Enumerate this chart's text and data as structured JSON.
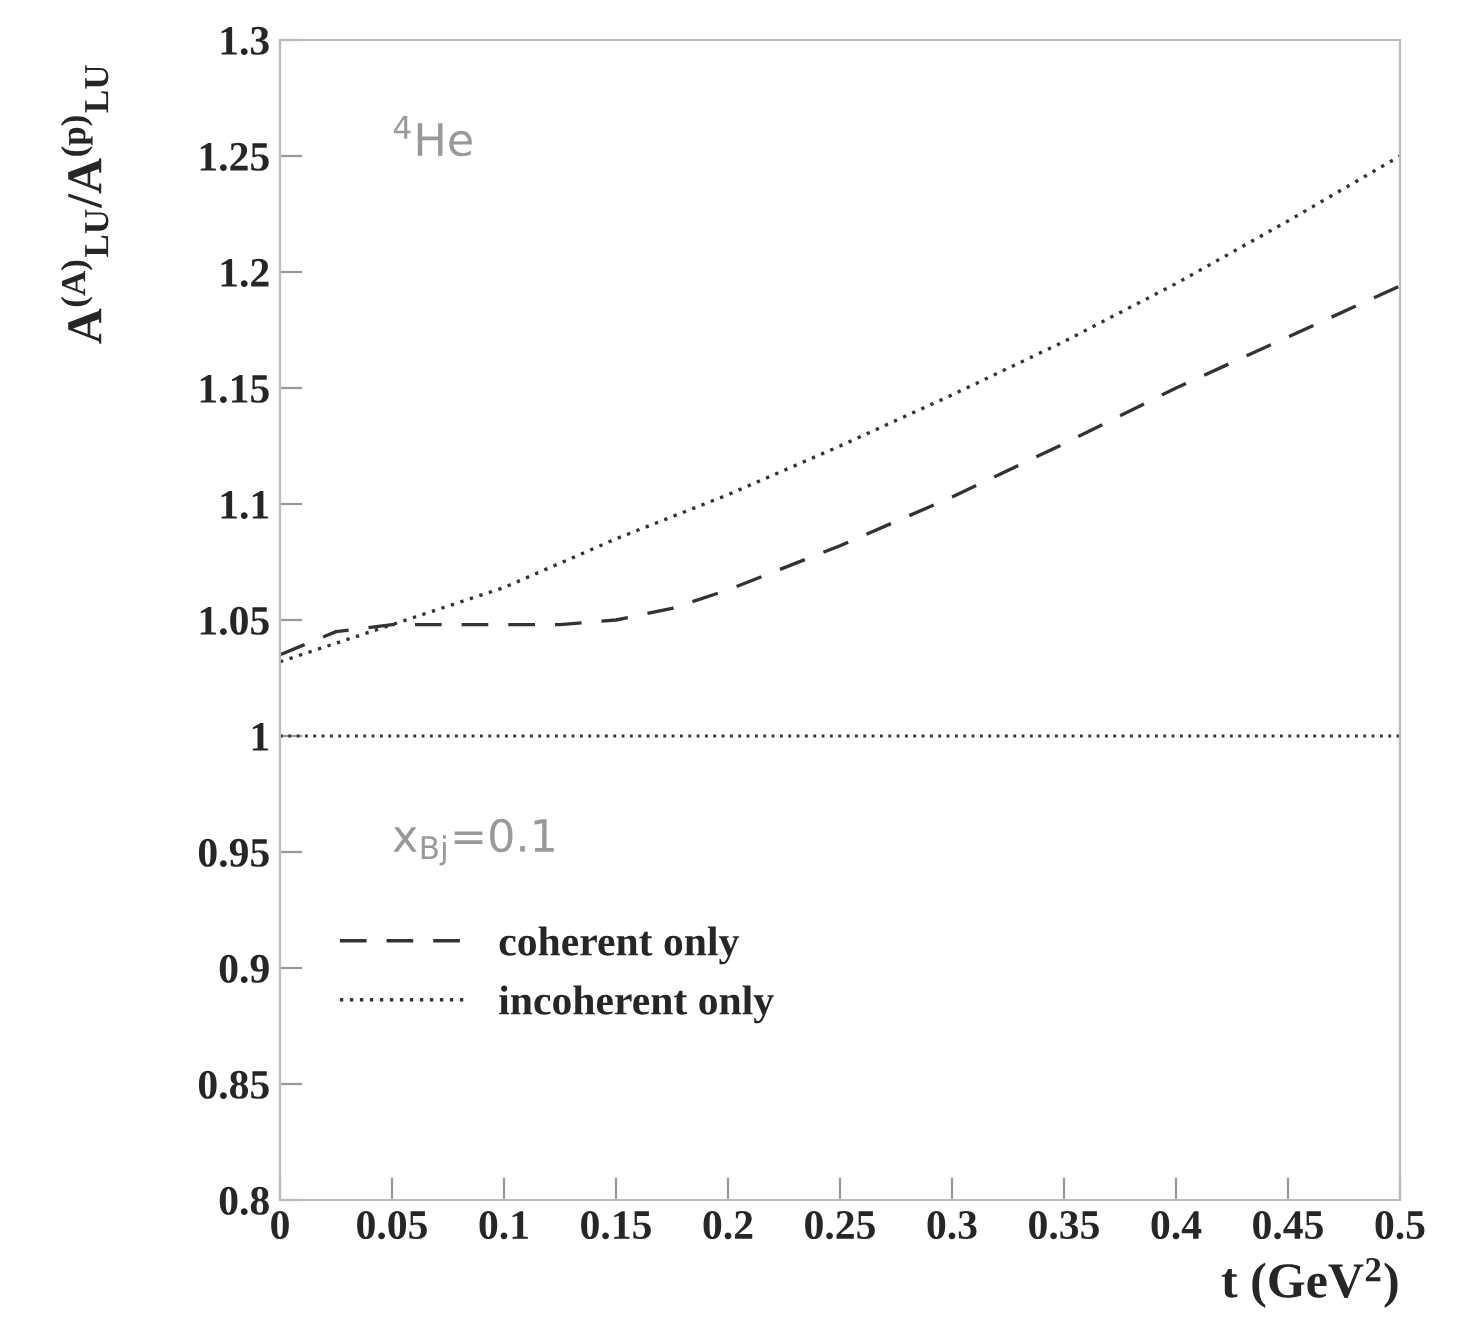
{
  "chart_data": {
    "type": "line",
    "xlabel": "t (GeV$^{2}$)",
    "ylabel": "A$^{(A)}$$_{LU}$/A$^{(p)}$$_{LU}$",
    "series": [
      {
        "name": "coherent only",
        "color": "#333333",
        "line_style": "dashed",
        "x": [
          0,
          0.025,
          0.05,
          0.075,
          0.1,
          0.125,
          0.15,
          0.175,
          0.2,
          0.25,
          0.3,
          0.35,
          0.4,
          0.45,
          0.5
        ],
        "values": [
          1.035,
          1.045,
          1.048,
          1.048,
          1.048,
          1.048,
          1.05,
          1.055,
          1.063,
          1.082,
          1.103,
          1.126,
          1.15,
          1.172,
          1.194
        ]
      },
      {
        "name": "incoherent only",
        "color": "#333333",
        "line_style": "dotted",
        "x": [
          0,
          0.025,
          0.05,
          0.1,
          0.15,
          0.2,
          0.25,
          0.3,
          0.35,
          0.4,
          0.45,
          0.5
        ],
        "values": [
          1.032,
          1.04,
          1.048,
          1.064,
          1.085,
          1.104,
          1.125,
          1.147,
          1.17,
          1.195,
          1.222,
          1.25
        ]
      }
    ],
    "ref_lines": [
      {
        "axis": "y",
        "value": 1,
        "color": "#333333",
        "line_style": "dotted"
      }
    ],
    "annotations": [
      "$^{4}$He",
      "x$_{Bj}$=0.1"
    ],
    "xlim": [
      0,
      0.5
    ],
    "ylim": [
      0.8,
      1.3
    ],
    "xticks": [
      0,
      0.05,
      0.1,
      0.15,
      0.2,
      0.25,
      0.3,
      0.35,
      0.4,
      0.45,
      0.5
    ],
    "yticks": [
      0.8,
      0.85,
      0.9,
      0.95,
      1,
      1.05,
      1.1,
      1.15,
      1.2,
      1.25,
      1.3
    ],
    "legend": "bottom left",
    "grid": false
  }
}
